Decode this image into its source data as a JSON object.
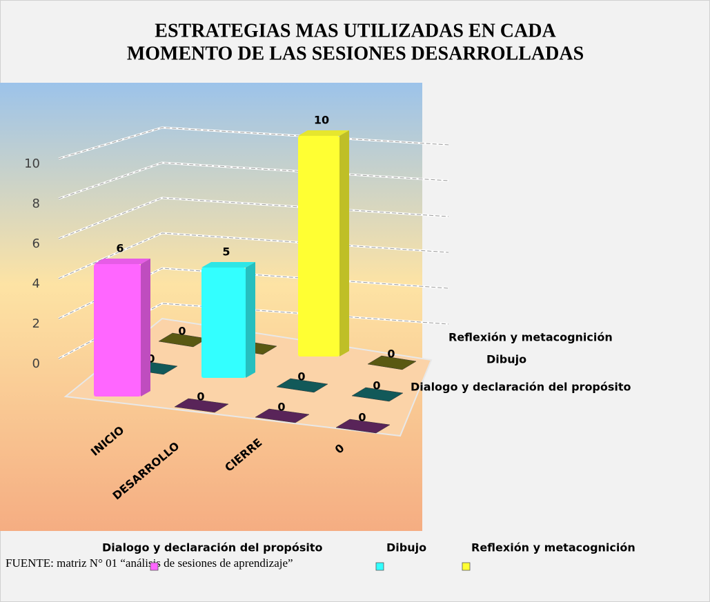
{
  "chart_data": {
    "type": "bar3d",
    "title": [
      "ESTRATEGIAS MAS UTILIZADAS EN CADA",
      "MOMENTO DE LAS SESIONES DESARROLLADAS"
    ],
    "categories": [
      "INICIO",
      "DESARROLLO",
      "CIERRE",
      "0"
    ],
    "series": [
      {
        "name": "Dialogo y declaración del propósito",
        "color": "#ff66ff",
        "values": [
          6,
          0,
          0,
          0
        ]
      },
      {
        "name": "Dibujo",
        "color": "#33ffff",
        "values": [
          0,
          5,
          0,
          0
        ]
      },
      {
        "name": "Reflexión y metacognición",
        "color": "#ffff33",
        "values": [
          0,
          0,
          10,
          0
        ]
      }
    ],
    "ylim": [
      0,
      10
    ],
    "yticks": [
      0,
      2,
      4,
      6,
      8,
      10
    ],
    "grid": true,
    "legend": "bottom",
    "source": "FUENTE: matriz N° 01 “análisis de sesiones de aprendizaje”"
  }
}
